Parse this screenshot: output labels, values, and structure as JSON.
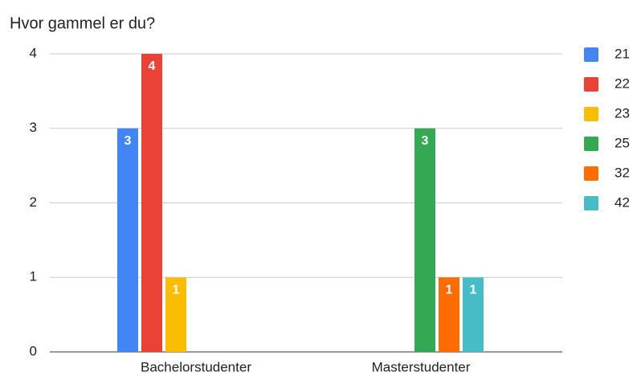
{
  "chart_data": {
    "type": "bar",
    "title": "Hvor gammel er du?",
    "categories": [
      "Bachelorstudenter",
      "Masterstudenter"
    ],
    "series": [
      {
        "name": "21",
        "color": "#4285f4",
        "values": [
          3,
          0
        ]
      },
      {
        "name": "22",
        "color": "#ea4335",
        "values": [
          4,
          0
        ]
      },
      {
        "name": "23",
        "color": "#fbbc04",
        "values": [
          1,
          0
        ]
      },
      {
        "name": "25",
        "color": "#34a853",
        "values": [
          0,
          3
        ]
      },
      {
        "name": "32",
        "color": "#ff6d01",
        "values": [
          0,
          1
        ]
      },
      {
        "name": "42",
        "color": "#46bdc6",
        "values": [
          0,
          1
        ]
      }
    ],
    "ylim": [
      0,
      4
    ],
    "yticks": [
      0,
      1,
      2,
      3,
      4
    ],
    "grid": true,
    "legend": "right"
  }
}
